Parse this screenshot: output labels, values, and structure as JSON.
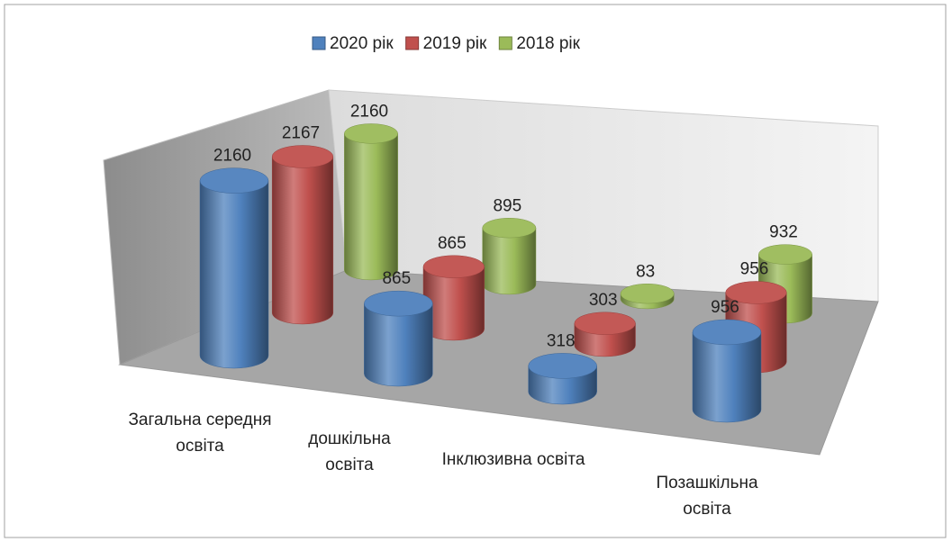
{
  "chart_data": {
    "type": "cylinder3d",
    "categories": [
      "Загальна середня освіта",
      "дошкільна освіта",
      "Інклюзивна освіта",
      "Позашкільна освіта"
    ],
    "series": [
      {
        "name": "2020 рік",
        "color": "#4f81bd",
        "values": [
          2160,
          865,
          318,
          956
        ]
      },
      {
        "name": "2019 рік",
        "color": "#c0504d",
        "values": [
          2167,
          865,
          303,
          956
        ]
      },
      {
        "name": "2018 рік",
        "color": "#9bbb59",
        "values": [
          2160,
          895,
          83,
          932
        ]
      }
    ],
    "legend": "top"
  }
}
